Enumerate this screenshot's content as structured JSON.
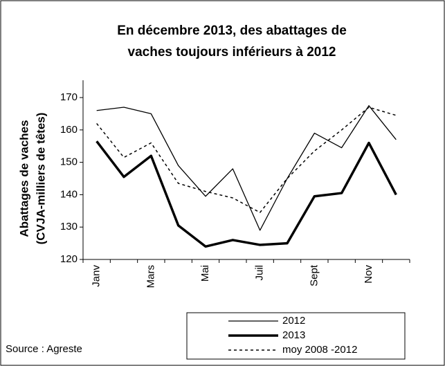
{
  "chart_data": {
    "type": "line",
    "title": [
      "En décembre 2013, des abattages de",
      "vaches toujours inférieurs à 2012"
    ],
    "y_label": [
      "Abattages de vaches",
      "(CVJA-milliers de  têtes)"
    ],
    "source": "Source : Agreste",
    "categories": [
      "Janv",
      null,
      "Mars",
      null,
      "Mai",
      null,
      "Juil",
      null,
      "Sept",
      null,
      "Nov",
      null
    ],
    "series": [
      {
        "name": "2012",
        "color": "#000000",
        "width": 1.3,
        "dash": null,
        "values": [
          166,
          167,
          165,
          149,
          139.5,
          148,
          129,
          145,
          159,
          154.5,
          167.5,
          157
        ]
      },
      {
        "name": "2013",
        "color": "#000000",
        "width": 3.5,
        "dash": null,
        "values": [
          156.5,
          145.5,
          152,
          130.5,
          124,
          126,
          124.5,
          125,
          139.5,
          140.5,
          156,
          140
        ]
      },
      {
        "name": "moy 2008 -2012",
        "color": "#000000",
        "width": 1.5,
        "dash": "4,4",
        "values": [
          162,
          151.5,
          156,
          143.5,
          141,
          139,
          134.5,
          145,
          153.5,
          160,
          167,
          164.5
        ]
      }
    ],
    "ylim": [
      120,
      170
    ],
    "yticks": [
      120,
      130,
      140,
      150,
      160,
      170
    ],
    "grid": false
  }
}
